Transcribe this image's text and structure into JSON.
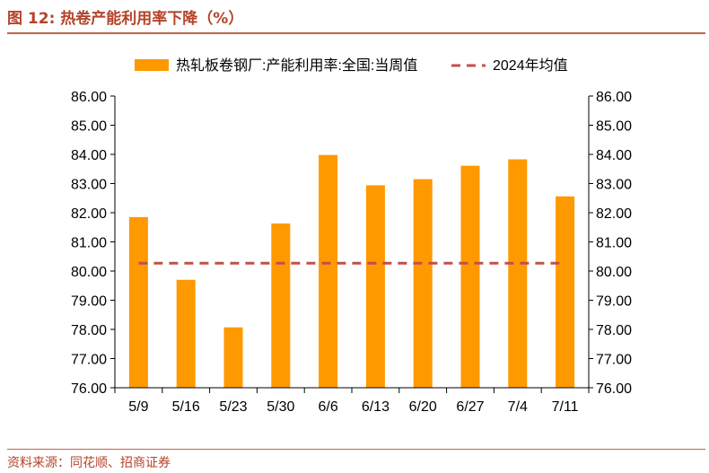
{
  "figure": {
    "title": "图 12:  热卷产能利用率下降（%）",
    "source": "资料来源：同花顺、招商证券"
  },
  "colors": {
    "bar": "#FF9900",
    "average_line": "#C0504D",
    "axis": "#000000",
    "accent": "#B4432A"
  },
  "chart_data": {
    "type": "bar",
    "title": "热卷产能利用率下降（%）",
    "categories": [
      "5/9",
      "5/16",
      "5/23",
      "5/30",
      "6/6",
      "6/13",
      "6/20",
      "6/27",
      "7/4",
      "7/11"
    ],
    "series": [
      {
        "name": "热轧板卷钢厂:产能利用率:全国:当周值",
        "type": "bar",
        "values": [
          81.85,
          79.7,
          78.07,
          81.63,
          83.98,
          82.94,
          83.15,
          83.61,
          83.83,
          82.56
        ]
      },
      {
        "name": "2024年均值",
        "type": "line-dashed",
        "values": [
          80.27,
          80.27,
          80.27,
          80.27,
          80.27,
          80.27,
          80.27,
          80.27,
          80.27,
          80.27
        ]
      }
    ],
    "ylim": [
      76,
      86
    ],
    "yticks": [
      "76.00",
      "77.00",
      "78.00",
      "79.00",
      "80.00",
      "81.00",
      "82.00",
      "83.00",
      "84.00",
      "85.00",
      "86.00"
    ],
    "y2ticks": [
      "76.00",
      "77.00",
      "78.00",
      "79.00",
      "80.00",
      "81.00",
      "82.00",
      "83.00",
      "84.00",
      "85.00",
      "86.00"
    ],
    "legend_position": "top",
    "grid": false
  }
}
